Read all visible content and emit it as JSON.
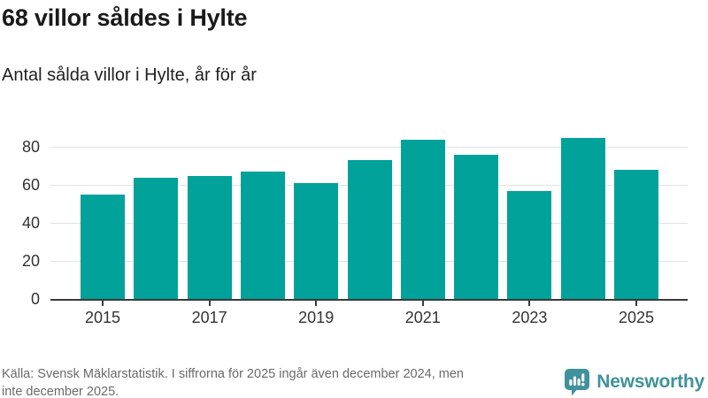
{
  "header": {
    "title": "68 villor såldes i Hylte",
    "subtitle": "Antal sålda villor i Hylte, år för år"
  },
  "chart_data": {
    "type": "bar",
    "title": "68 villor såldes i Hylte",
    "subtitle": "Antal sålda villor i Hylte, år för år",
    "categories": [
      "2015",
      "2016",
      "2017",
      "2018",
      "2019",
      "2020",
      "2021",
      "2022",
      "2023",
      "2024",
      "2025"
    ],
    "values": [
      55,
      64,
      65,
      67,
      61,
      73,
      84,
      76,
      57,
      85,
      68
    ],
    "xlabel": "",
    "ylabel": "",
    "ylim": [
      0,
      90
    ],
    "yticks": [
      0,
      20,
      40,
      60,
      80
    ],
    "xtick_labels": [
      "2015",
      "2017",
      "2019",
      "2021",
      "2023",
      "2025"
    ],
    "grid": true,
    "legend": "none",
    "bar_color": "#00a29a"
  },
  "footer": {
    "source_lines": [
      "Källa: Svensk Mäklarstatistik. I siffrorna för 2025 ingår även december 2024, men",
      "inte december 2025."
    ],
    "brand": "Newsworthy"
  },
  "colors": {
    "bar": "#00a29a",
    "axis": "#3a3a3a",
    "gridline": "#e2e2e2",
    "tick_label": "#333333",
    "title_text": "#1a1a1a",
    "source_text": "#6a6a6a",
    "brand_teal": "#3f929b",
    "background": "#ffffff"
  }
}
